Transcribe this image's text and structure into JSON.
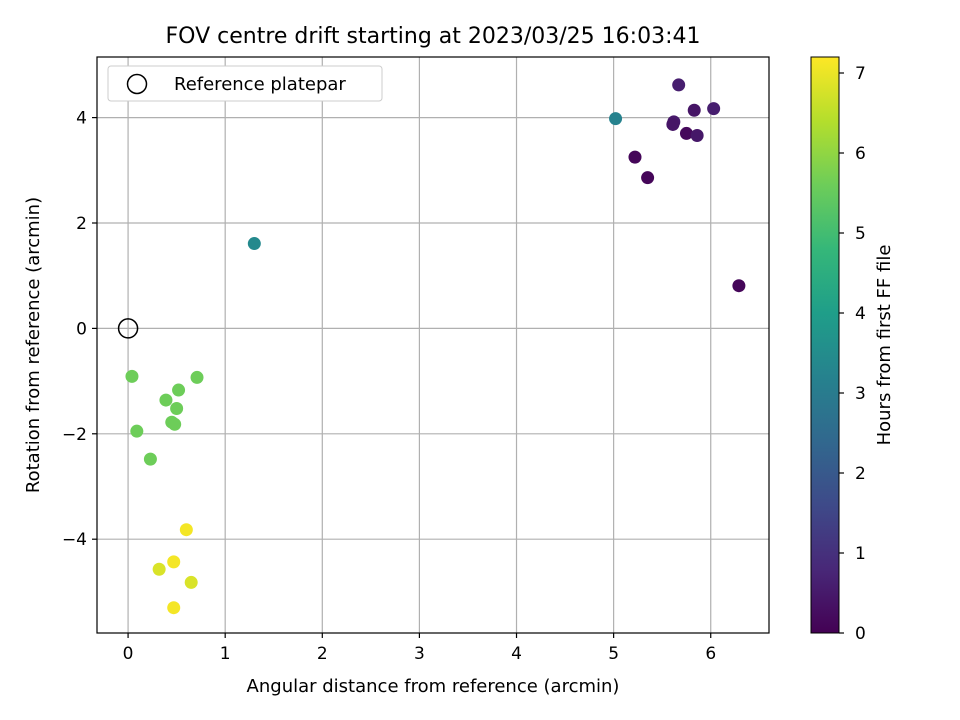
{
  "chart_data": {
    "type": "scatter",
    "title": "FOV centre drift starting at 2023/03/25 16:03:41",
    "xlabel": "Angular distance from reference (arcmin)",
    "ylabel": "Rotation from reference (arcmin)",
    "xlim": [
      -0.32,
      6.6
    ],
    "ylim": [
      -5.78,
      5.15
    ],
    "xticks": [
      0,
      1,
      2,
      3,
      4,
      5,
      6
    ],
    "yticks": [
      -4,
      -2,
      0,
      2,
      4
    ],
    "grid": true,
    "legend": {
      "position": "top-left",
      "entries": [
        {
          "label": "Reference platepar",
          "marker": "open-circle"
        }
      ]
    },
    "reference_point": {
      "x": 0,
      "y": 0
    },
    "colorbar": {
      "label": "Hours from first FF file",
      "range": [
        0,
        7.2
      ],
      "ticks": [
        0,
        1,
        2,
        3,
        4,
        5,
        6,
        7
      ],
      "colormap": "viridis"
    },
    "points": [
      {
        "x": 5.67,
        "y": 4.62,
        "h": 0.6
      },
      {
        "x": 5.83,
        "y": 4.14,
        "h": 0.4
      },
      {
        "x": 6.03,
        "y": 4.17,
        "h": 0.6
      },
      {
        "x": 5.62,
        "y": 3.92,
        "h": 0.5
      },
      {
        "x": 5.61,
        "y": 3.87,
        "h": 0.4
      },
      {
        "x": 5.75,
        "y": 3.7,
        "h": 0.15
      },
      {
        "x": 5.86,
        "y": 3.66,
        "h": 0.45
      },
      {
        "x": 5.22,
        "y": 3.25,
        "h": 0.1
      },
      {
        "x": 5.35,
        "y": 2.86,
        "h": 0.1
      },
      {
        "x": 6.29,
        "y": 0.81,
        "h": 0.1
      },
      {
        "x": 5.02,
        "y": 3.98,
        "h": 3.2
      },
      {
        "x": 1.3,
        "y": 1.61,
        "h": 3.4
      },
      {
        "x": 0.04,
        "y": -0.91,
        "h": 5.6
      },
      {
        "x": 0.71,
        "y": -0.93,
        "h": 5.6
      },
      {
        "x": 0.52,
        "y": -1.17,
        "h": 5.6
      },
      {
        "x": 0.39,
        "y": -1.36,
        "h": 5.6
      },
      {
        "x": 0.5,
        "y": -1.52,
        "h": 5.6
      },
      {
        "x": 0.45,
        "y": -1.78,
        "h": 5.6
      },
      {
        "x": 0.48,
        "y": -1.82,
        "h": 5.6
      },
      {
        "x": 0.09,
        "y": -1.95,
        "h": 5.6
      },
      {
        "x": 0.23,
        "y": -2.48,
        "h": 5.6
      },
      {
        "x": 0.6,
        "y": -3.82,
        "h": 7.1
      },
      {
        "x": 0.47,
        "y": -4.43,
        "h": 7.1
      },
      {
        "x": 0.32,
        "y": -4.57,
        "h": 6.8
      },
      {
        "x": 0.65,
        "y": -4.82,
        "h": 6.8
      },
      {
        "x": 0.47,
        "y": -5.3,
        "h": 7.1
      }
    ]
  }
}
